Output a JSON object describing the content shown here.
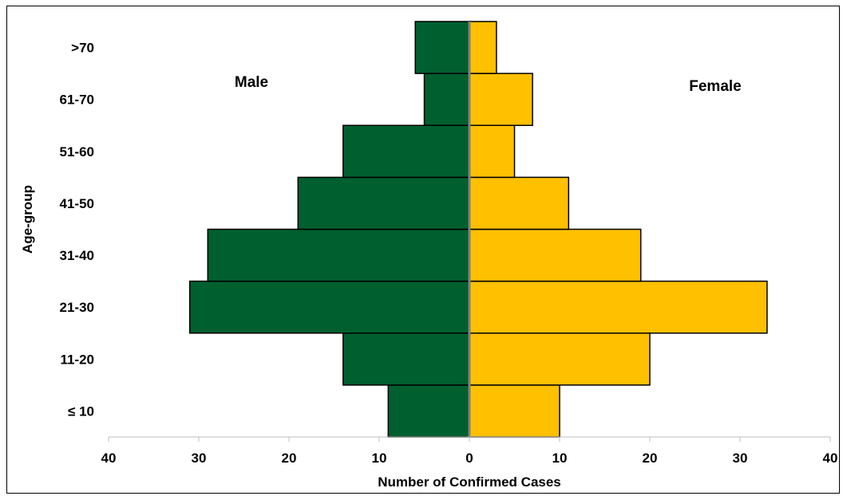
{
  "chart_data": {
    "type": "bar",
    "orientation": "horizontal",
    "layout": "population-pyramid",
    "categories": [
      "≤ 10",
      "11-20",
      "21-30",
      "31-40",
      "41-50",
      "51-60",
      "61-70",
      ">70"
    ],
    "series": [
      {
        "name": "Male",
        "values": [
          9,
          14,
          31,
          29,
          19,
          14,
          5,
          6
        ],
        "color": "#005f2f",
        "direction": "left"
      },
      {
        "name": "Female",
        "values": [
          10,
          20,
          33,
          19,
          11,
          5,
          7,
          3
        ],
        "color": "#ffc000",
        "direction": "right"
      }
    ],
    "xlabel": "Number of Confirmed Cases",
    "ylabel": "Age-group",
    "xlim": [
      -40,
      40
    ],
    "xticks": [
      -40,
      -30,
      -20,
      -10,
      0,
      10,
      20,
      30,
      40
    ],
    "xtick_labels": [
      "40",
      "30",
      "20",
      "10",
      "0",
      "10",
      "20",
      "30",
      "40"
    ],
    "grid": false,
    "legend": "none"
  }
}
